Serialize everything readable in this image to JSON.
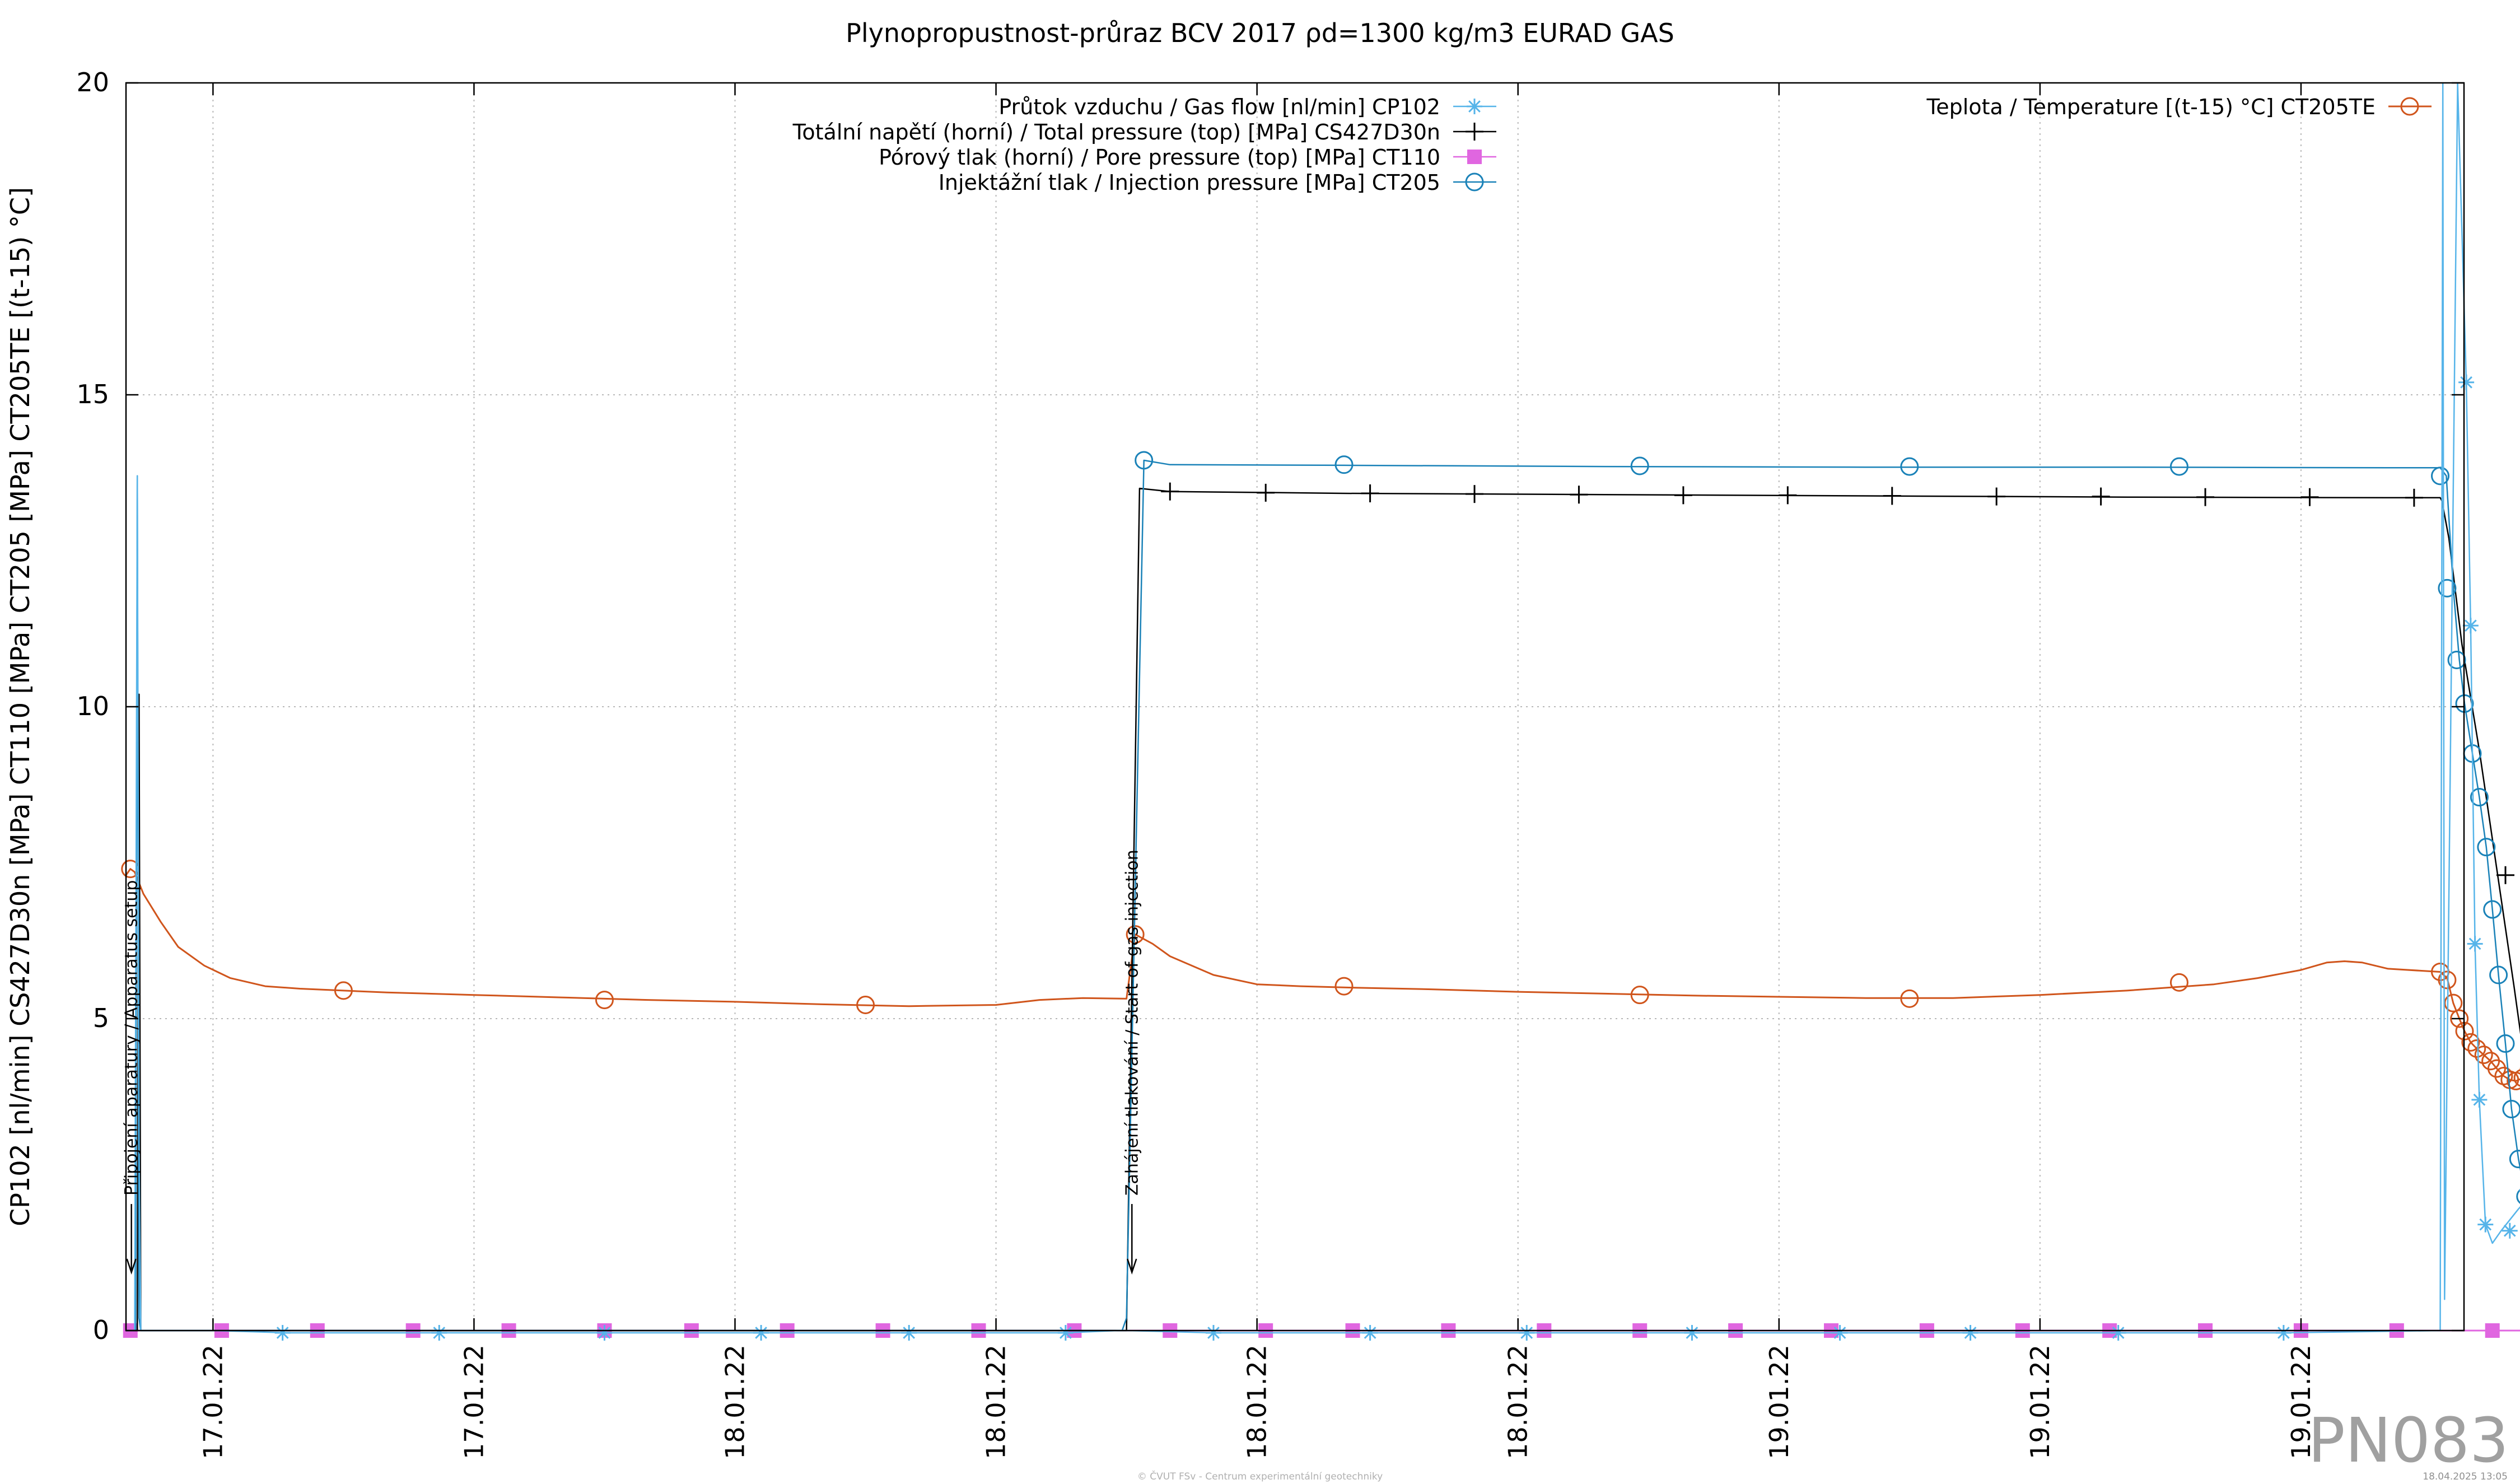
{
  "chart_data": {
    "type": "line",
    "title": "Plynopropustnost-průraz BCV 2017 ρd=1300 kg/m3 EURAD GAS",
    "ylabel": "CP102 [nl/min] CS427D30n [MPa] CT110 [MPa] CT205 [MPa] CT205TE [(t-15) °C]",
    "xlabel": "",
    "ylim": [
      0,
      20
    ],
    "xlim": [
      0,
      28.0
    ],
    "grid": true,
    "y_ticks": [
      "0",
      "5",
      "10",
      "15",
      "20"
    ],
    "x_tick_values": [
      1.0,
      4.0,
      7.0,
      10.0,
      13.0,
      16.0,
      19.0,
      22.0,
      25.0,
      28.0
    ],
    "x_tick_labels": [
      "17.01.22",
      "17.01.22",
      "18.01.22",
      "18.01.22",
      "18.01.22",
      "18.01.22",
      "19.01.22",
      "19.01.22",
      "19.01.22",
      "19.01.22"
    ],
    "legend_left": {
      "placement": "top-center",
      "entries": [
        "Průtok vzduchu / Gas flow [nl/min] CP102",
        "Totální napětí (horní) / Total pressure (top) [MPa] CS427D30n",
        "Pórový tlak (horní) / Pore pressure (top) [MPa] CT110",
        "Injektážní tlak / Injection pressure [MPa] CT205"
      ]
    },
    "legend_right": {
      "placement": "top-right",
      "entries": [
        "Teplota / Temperature [(t-15) °C] CT205TE"
      ]
    },
    "annotations": [
      {
        "text": "Připojení aparatury / Apparatus setup",
        "x": 0.03
      },
      {
        "text": "Zahájení tlakování / Start of gas injection",
        "x": 11.53
      }
    ],
    "colors": {
      "gas_flow": "#56b4e9",
      "total_pressure": "#000000",
      "pore_pressure": "#e066e0",
      "injection": "#1a82b8",
      "temperature": "#d0551c",
      "grid": "#b8b8b8"
    },
    "series": [
      {
        "name": "Průtok vzduchu / Gas flow [nl/min] CP102",
        "key": "gas_flow",
        "x": [
          0,
          0.1,
          0.13,
          0.15,
          0.17,
          0.2,
          1.0,
          1.85,
          3.6,
          5.5,
          7.3,
          9.0,
          10.8,
          11.4,
          11.48,
          11.5,
          12.5,
          14.3,
          16.1,
          18.0,
          19.7,
          21.2,
          22.9,
          24.8,
          26.6,
          26.63,
          26.65,
          26.8,
          26.9,
          26.95,
          27.0,
          27.05,
          27.12,
          27.2,
          27.3,
          27.5,
          27.7,
          27.8,
          27.9,
          28.0
        ],
        "y": [
          0,
          0,
          13.7,
          3,
          0,
          0,
          0,
          -0.05,
          -0.05,
          -0.05,
          -0.05,
          -0.05,
          -0.05,
          0,
          0,
          0,
          -0.05,
          -0.05,
          -0.05,
          -0.05,
          -0.05,
          -0.05,
          -0.05,
          -0.05,
          0,
          20,
          0.5,
          20,
          15.2,
          11.3,
          6.2,
          3.7,
          1.7,
          1.4,
          1.6,
          1.95,
          2.25,
          1.4,
          0.5,
          0.1
        ],
        "markers_x": [
          1.8,
          3.6,
          5.5,
          7.3,
          9.0,
          10.8,
          12.5,
          14.3,
          16.1,
          18.0,
          19.7,
          21.2,
          22.9,
          24.8,
          26.9,
          26.95,
          27.0,
          27.05,
          27.12,
          27.4,
          27.6,
          27.8
        ],
        "markers_y": [
          -0.05,
          -0.05,
          -0.05,
          -0.05,
          -0.05,
          -0.05,
          -0.05,
          -0.05,
          -0.05,
          -0.05,
          -0.05,
          -0.05,
          -0.05,
          -0.05,
          15.2,
          11.3,
          6.2,
          3.7,
          1.7,
          1.6,
          2.25,
          1.4
        ]
      },
      {
        "name": "Totální napětí (horní) / Total pressure (top) [MPa] CS427D30n",
        "key": "total_pressure",
        "x": [
          0,
          0.13,
          0.15,
          0.17,
          0.2,
          11.45,
          11.5,
          11.65,
          12.0,
          14.0,
          17.0,
          20.0,
          23.0,
          26.0,
          26.6,
          26.62,
          26.7,
          26.85,
          27.05,
          27.25,
          27.45,
          27.6,
          27.75,
          27.9,
          28.0
        ],
        "y": [
          0,
          0,
          10.2,
          0,
          0,
          0,
          0,
          13.5,
          13.45,
          13.42,
          13.4,
          13.38,
          13.36,
          13.35,
          13.35,
          13.3,
          12.7,
          11.0,
          9.3,
          7.4,
          5.5,
          4.0,
          2.4,
          0.9,
          0.25
        ],
        "markers_x": [
          12.0,
          13.1,
          14.3,
          15.5,
          16.7,
          17.9,
          19.1,
          20.3,
          21.5,
          22.7,
          23.9,
          25.1,
          26.3,
          27.35
        ],
        "markers_y": [
          13.45,
          13.43,
          13.42,
          13.41,
          13.4,
          13.39,
          13.39,
          13.38,
          13.37,
          13.37,
          13.36,
          13.36,
          13.35,
          7.3
        ]
      },
      {
        "name": "Pórový tlak (horní) / Pore pressure (top) [MPa] CT110",
        "key": "pore_pressure",
        "x": [
          0,
          28.0
        ],
        "y": [
          0,
          0
        ],
        "markers_x": [
          0.05,
          1.1,
          2.2,
          3.3,
          4.4,
          5.5,
          6.5,
          7.6,
          8.7,
          9.8,
          10.9,
          12.0,
          13.1,
          14.1,
          15.2,
          16.3,
          17.4,
          18.5,
          19.6,
          20.7,
          21.8,
          22.8,
          23.9,
          25.0,
          26.1,
          27.2
        ],
        "markers_y": [
          0,
          0,
          0,
          0,
          0,
          0,
          0,
          0,
          0,
          0,
          0,
          0,
          0,
          0,
          0,
          0,
          0,
          0,
          0,
          0,
          0,
          0,
          0,
          0,
          0,
          0
        ]
      },
      {
        "name": "Injektážní tlak / Injection pressure [MPa] CT205",
        "key": "injection",
        "x": [
          0,
          0.11,
          0.13,
          0.15,
          0.17,
          11.45,
          11.5,
          11.7,
          12.0,
          14.0,
          17.0,
          20.0,
          23.0,
          26.0,
          26.6,
          26.67,
          26.75,
          26.82,
          26.88,
          26.97,
          27.05,
          27.13,
          27.2,
          27.27,
          27.35,
          27.42,
          27.5,
          27.58,
          27.65,
          27.72,
          27.8,
          27.87,
          27.93,
          28.0
        ],
        "y": [
          0,
          0,
          13.7,
          0.2,
          0,
          0,
          0.2,
          13.95,
          13.88,
          13.87,
          13.85,
          13.84,
          13.84,
          13.83,
          13.83,
          13.7,
          11.9,
          10.75,
          10.05,
          9.25,
          8.55,
          7.75,
          6.75,
          5.7,
          4.6,
          3.55,
          2.75,
          2.15,
          1.6,
          1.15,
          0.65,
          0.3,
          0.3,
          0.3
        ],
        "markers_x": [
          11.7,
          14.0,
          17.4,
          20.5,
          23.6,
          26.6,
          26.68,
          26.79,
          26.88,
          26.97,
          27.05,
          27.13,
          27.2,
          27.27,
          27.35,
          27.42,
          27.5,
          27.58,
          27.65,
          27.72,
          27.8,
          27.95
        ],
        "markers_y": [
          13.95,
          13.88,
          13.86,
          13.85,
          13.85,
          13.7,
          11.9,
          10.75,
          10.05,
          9.25,
          8.55,
          7.75,
          6.75,
          5.7,
          4.6,
          3.55,
          2.75,
          2.15,
          1.6,
          1.15,
          0.65,
          0.3
        ]
      },
      {
        "name": "Teplota / Temperature [(t-15) °C] CT205TE",
        "key": "temperature",
        "x": [
          0,
          0.05,
          0.1,
          0.2,
          0.4,
          0.6,
          0.9,
          1.2,
          1.6,
          2.0,
          2.5,
          3.0,
          4.0,
          5.0,
          6.0,
          7.0,
          8.0,
          9.0,
          10.0,
          10.5,
          11.0,
          11.5,
          11.6,
          11.8,
          12.0,
          12.5,
          13.0,
          13.5,
          14.0,
          15.0,
          16.0,
          17.0,
          18.0,
          19.0,
          20.0,
          21.0,
          22.0,
          23.0,
          24.0,
          24.5,
          25.0,
          25.3,
          25.5,
          25.7,
          26.0,
          26.6,
          26.68,
          26.75,
          26.82,
          26.88,
          26.95,
          27.02,
          27.1,
          27.18,
          27.25,
          27.33,
          27.4,
          27.47,
          27.55,
          27.62,
          27.7,
          27.8,
          27.88,
          28.0
        ],
        "y": [
          7.3,
          7.4,
          7.35,
          7.0,
          6.55,
          6.15,
          5.85,
          5.65,
          5.52,
          5.48,
          5.45,
          5.42,
          5.38,
          5.34,
          5.3,
          5.27,
          5.23,
          5.2,
          5.22,
          5.3,
          5.33,
          5.32,
          6.35,
          6.2,
          6.0,
          5.7,
          5.55,
          5.52,
          5.5,
          5.47,
          5.43,
          5.4,
          5.37,
          5.35,
          5.33,
          5.33,
          5.38,
          5.45,
          5.55,
          5.65,
          5.78,
          5.9,
          5.92,
          5.9,
          5.8,
          5.75,
          5.65,
          5.25,
          5.0,
          4.8,
          4.62,
          4.52,
          4.42,
          4.32,
          4.2,
          4.08,
          4.02,
          4.0,
          4.05,
          4.18,
          4.35,
          4.45,
          4.6,
          4.65
        ],
        "markers_x": [
          0.05,
          2.5,
          5.5,
          8.5,
          11.6,
          14.0,
          17.4,
          20.5,
          23.6,
          26.6,
          26.68,
          26.75,
          26.82,
          26.88,
          26.95,
          27.02,
          27.1,
          27.18,
          27.25,
          27.33,
          27.4,
          27.47,
          27.55,
          27.62,
          27.8,
          28.0
        ],
        "markers_y": [
          7.4,
          5.45,
          5.3,
          5.22,
          6.35,
          5.52,
          5.38,
          5.32,
          5.58,
          5.75,
          5.62,
          5.25,
          5.0,
          4.8,
          4.62,
          4.52,
          4.42,
          4.32,
          4.2,
          4.08,
          4.02,
          4.0,
          4.05,
          4.18,
          4.35,
          4.65
        ]
      }
    ]
  },
  "watermark": "PN083",
  "footer_center": "© ČVUT FSv - Centrum experimentální geotechniky",
  "footer_right": "18.04.2025 13:05"
}
